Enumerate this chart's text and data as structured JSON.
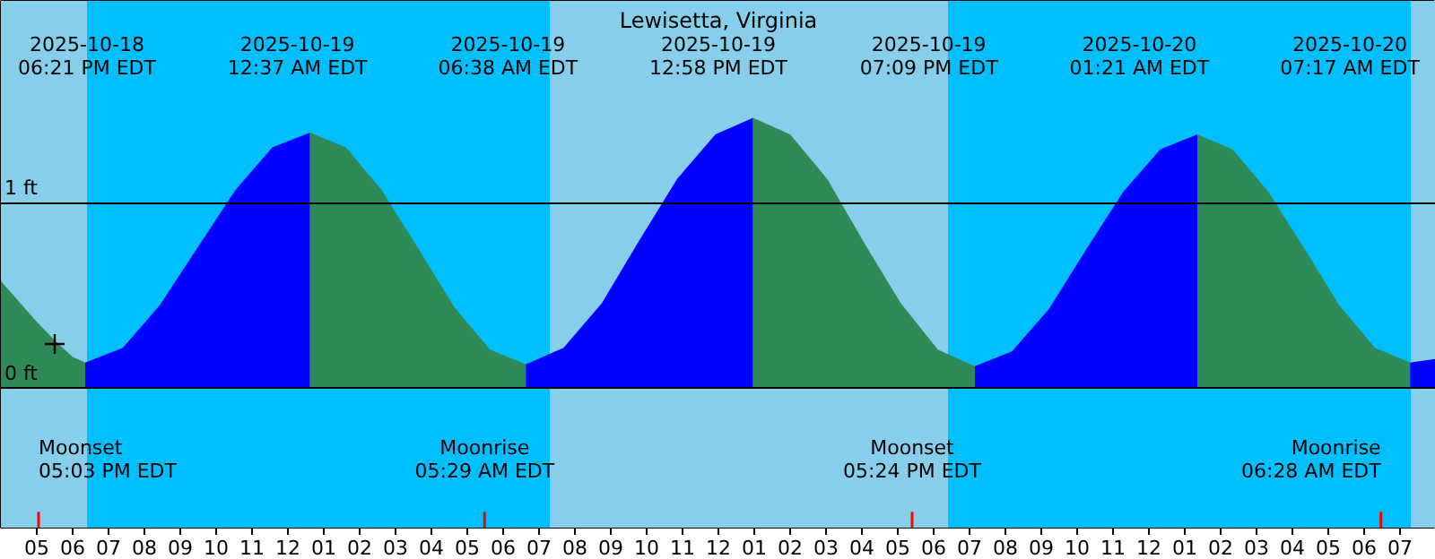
{
  "chart_data": {
    "type": "area",
    "title": "Lewisetta, Virginia",
    "xlim": [
      "2025-10-18T16:00",
      "2025-10-20T08:00"
    ],
    "ylim": [
      -0.75,
      2.09
    ],
    "xticks": [
      {
        "value": "2025-10-18T17:00",
        "label": "05"
      },
      {
        "value": "2025-10-18T18:00",
        "label": "06"
      },
      {
        "value": "2025-10-18T19:00",
        "label": "07"
      },
      {
        "value": "2025-10-18T20:00",
        "label": "08"
      },
      {
        "value": "2025-10-18T21:00",
        "label": "09"
      },
      {
        "value": "2025-10-18T22:00",
        "label": "10"
      },
      {
        "value": "2025-10-18T23:00",
        "label": "11"
      },
      {
        "value": "2025-10-19T00:00",
        "label": "12"
      },
      {
        "value": "2025-10-19T01:00",
        "label": "01"
      },
      {
        "value": "2025-10-19T02:00",
        "label": "02"
      },
      {
        "value": "2025-10-19T03:00",
        "label": "03"
      },
      {
        "value": "2025-10-19T04:00",
        "label": "04"
      },
      {
        "value": "2025-10-19T05:00",
        "label": "05"
      },
      {
        "value": "2025-10-19T06:00",
        "label": "06"
      },
      {
        "value": "2025-10-19T07:00",
        "label": "07"
      },
      {
        "value": "2025-10-19T08:00",
        "label": "08"
      },
      {
        "value": "2025-10-19T09:00",
        "label": "09"
      },
      {
        "value": "2025-10-19T10:00",
        "label": "10"
      },
      {
        "value": "2025-10-19T11:00",
        "label": "11"
      },
      {
        "value": "2025-10-19T12:00",
        "label": "12"
      },
      {
        "value": "2025-10-19T13:00",
        "label": "01"
      },
      {
        "value": "2025-10-19T14:00",
        "label": "02"
      },
      {
        "value": "2025-10-19T15:00",
        "label": "03"
      },
      {
        "value": "2025-10-19T16:00",
        "label": "04"
      },
      {
        "value": "2025-10-19T17:00",
        "label": "05"
      },
      {
        "value": "2025-10-19T18:00",
        "label": "06"
      },
      {
        "value": "2025-10-19T19:00",
        "label": "07"
      },
      {
        "value": "2025-10-19T20:00",
        "label": "08"
      },
      {
        "value": "2025-10-19T21:00",
        "label": "09"
      },
      {
        "value": "2025-10-19T22:00",
        "label": "10"
      },
      {
        "value": "2025-10-19T23:00",
        "label": "11"
      },
      {
        "value": "2025-10-20T00:00",
        "label": "12"
      },
      {
        "value": "2025-10-20T01:00",
        "label": "01"
      },
      {
        "value": "2025-10-20T02:00",
        "label": "02"
      },
      {
        "value": "2025-10-20T03:00",
        "label": "03"
      },
      {
        "value": "2025-10-20T04:00",
        "label": "04"
      },
      {
        "value": "2025-10-20T05:00",
        "label": "05"
      },
      {
        "value": "2025-10-20T06:00",
        "label": "06"
      },
      {
        "value": "2025-10-20T07:00",
        "label": "07"
      }
    ],
    "yticks": [
      {
        "value": 0,
        "label": "0 ft"
      },
      {
        "value": 1,
        "label": "1 ft"
      }
    ],
    "grid": "y",
    "bands": [
      {
        "axis": "x",
        "from": "2025-10-18T16:00",
        "to": "2025-10-18T18:24",
        "color": "#87ceeb"
      },
      {
        "axis": "x",
        "from": "2025-10-18T18:24",
        "to": "2025-10-19T07:18",
        "color": "#00bfff"
      },
      {
        "axis": "x",
        "from": "2025-10-19T07:18",
        "to": "2025-10-19T18:24",
        "color": "#87ceeb"
      },
      {
        "axis": "x",
        "from": "2025-10-19T18:24",
        "to": "2025-10-20T07:18",
        "color": "#00bfff"
      },
      {
        "axis": "x",
        "from": "2025-10-20T07:18",
        "to": "2025-10-20T08:00",
        "color": "#87ceeb"
      }
    ],
    "ref_lines": [
      {
        "axis": "x",
        "value": "2025-10-18T17:03",
        "label": "Moonset\n05:03 PM EDT",
        "color": "#ff0000"
      },
      {
        "axis": "x",
        "value": "2025-10-19T05:29",
        "label": "Moonrise\n05:29 AM EDT",
        "color": "#ff0000"
      },
      {
        "axis": "x",
        "value": "2025-10-19T17:24",
        "label": "Moonset\n05:24 PM EDT",
        "color": "#ff0000"
      },
      {
        "axis": "x",
        "value": "2025-10-20T06:28",
        "label": "Moonrise\n06:28 AM EDT",
        "color": "#ff0000"
      }
    ],
    "series": [
      {
        "color": "#2e8b57",
        "x": [
          "2025-10-18T16:00",
          "2025-10-18T16:30",
          "2025-10-18T17:00",
          "2025-10-18T17:30",
          "2025-10-18T18:00",
          "2025-10-18T18:21"
        ],
        "values": [
          0.58,
          0.47,
          0.36,
          0.26,
          0.17,
          0.14
        ]
      },
      {
        "color": "#0000ff",
        "x": [
          "2025-10-18T18:21",
          "2025-10-18T19:24",
          "2025-10-18T20:26",
          "2025-10-18T21:29",
          "2025-10-18T22:32",
          "2025-10-18T23:34",
          "2025-10-19T00:37"
        ],
        "values": [
          0.14,
          0.22,
          0.45,
          0.76,
          1.07,
          1.3,
          1.38
        ]
      },
      {
        "color": "#2e8b57",
        "x": [
          "2025-10-19T00:37",
          "2025-10-19T01:37",
          "2025-10-19T02:37",
          "2025-10-19T03:37",
          "2025-10-19T04:38",
          "2025-10-19T05:38",
          "2025-10-19T06:38"
        ],
        "values": [
          1.38,
          1.3,
          1.07,
          0.76,
          0.44,
          0.21,
          0.13
        ]
      },
      {
        "color": "#0000ff",
        "x": [
          "2025-10-19T06:38",
          "2025-10-19T07:41",
          "2025-10-19T08:45",
          "2025-10-19T09:48",
          "2025-10-19T10:51",
          "2025-10-19T11:55",
          "2025-10-19T12:58"
        ],
        "values": [
          0.13,
          0.22,
          0.46,
          0.8,
          1.13,
          1.37,
          1.46
        ]
      },
      {
        "color": "#2e8b57",
        "x": [
          "2025-10-19T12:58",
          "2025-10-19T14:00",
          "2025-10-19T15:02",
          "2025-10-19T16:03",
          "2025-10-19T17:05",
          "2025-10-19T18:07",
          "2025-10-19T19:09"
        ],
        "values": [
          1.46,
          1.37,
          1.13,
          0.79,
          0.46,
          0.21,
          0.12
        ]
      },
      {
        "color": "#0000ff",
        "x": [
          "2025-10-19T19:09",
          "2025-10-19T20:11",
          "2025-10-19T21:13",
          "2025-10-19T22:15",
          "2025-10-19T23:17",
          "2025-10-20T00:19",
          "2025-10-20T01:21"
        ],
        "values": [
          0.12,
          0.2,
          0.43,
          0.75,
          1.06,
          1.29,
          1.37
        ]
      },
      {
        "color": "#2e8b57",
        "x": [
          "2025-10-20T01:21",
          "2025-10-20T02:20",
          "2025-10-20T03:20",
          "2025-10-20T04:19",
          "2025-10-20T05:18",
          "2025-10-20T06:18",
          "2025-10-20T07:17"
        ],
        "values": [
          1.37,
          1.29,
          1.06,
          0.76,
          0.45,
          0.22,
          0.14
        ]
      },
      {
        "color": "#0000ff",
        "x": [
          "2025-10-20T07:17",
          "2025-10-20T08:00"
        ],
        "values": [
          0.14,
          0.16
        ]
      },
      {
        "type": "scatter",
        "marker": "cross",
        "color": "#000000",
        "x": [
          "2025-10-18T17:30"
        ],
        "values": [
          0.24
        ]
      }
    ],
    "annotations": [
      "2025-10-18\n06:21 PM EDT",
      "2025-10-19\n12:37 AM EDT",
      "2025-10-19\n06:38 AM EDT",
      "2025-10-19\n12:58 PM EDT",
      "2025-10-19\n07:09 PM EDT",
      "2025-10-20\n01:21 AM EDT",
      "2025-10-20\n07:17 AM EDT"
    ]
  }
}
